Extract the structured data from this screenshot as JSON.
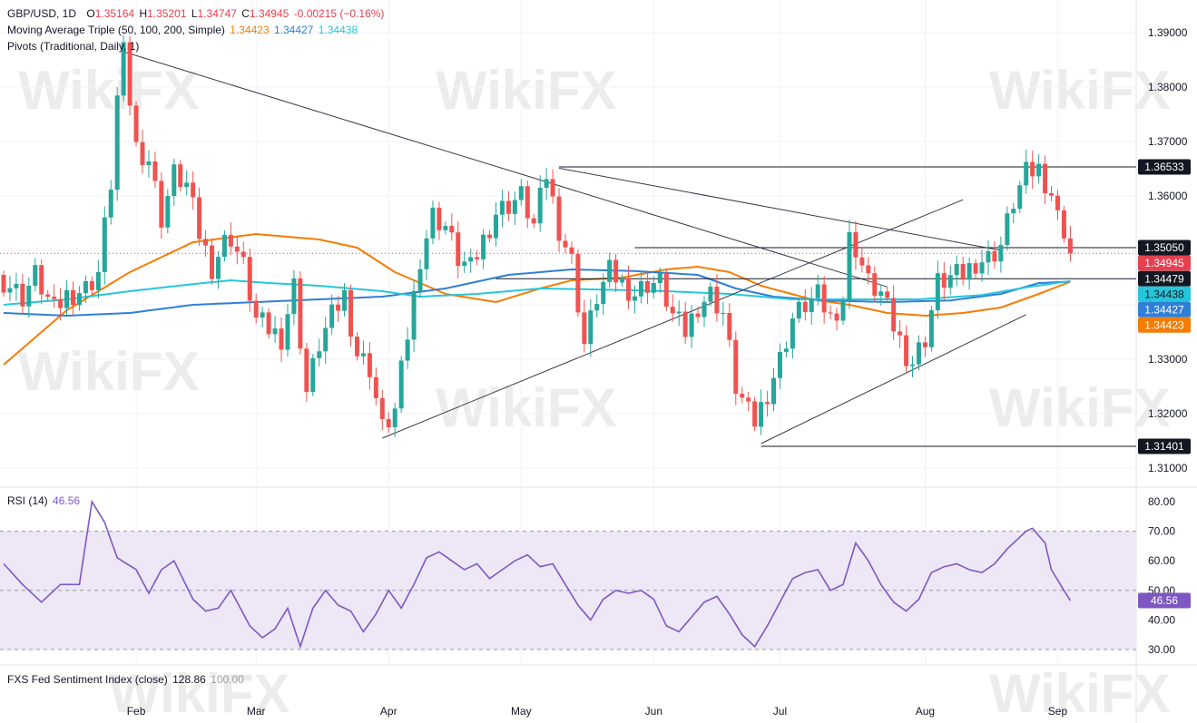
{
  "legend": {
    "symbol": "GBP/USD, 1D",
    "ohlc": {
      "o_label": "O",
      "o": "1.35164",
      "h_label": "H",
      "h": "1.35201",
      "l_label": "L",
      "l": "1.34747",
      "c_label": "C",
      "c": "1.34945",
      "change": "-0.00215 (−0.16%)"
    },
    "ma_title": "Moving Average Triple (50, 100, 200, Simple)",
    "ma_values": [
      "1.34423",
      "1.34427",
      "1.34438"
    ],
    "pivots": "Pivots (Traditional, Daily, 1)",
    "rsi_title": "RSI (14)",
    "rsi_value": "46.56",
    "fxs_title": "FXS Fed Sentiment Index (close)",
    "fxs_value": "128.86",
    "fxs_value2": "100.00"
  },
  "colors": {
    "up": "#26a69a",
    "down": "#ef5350",
    "ma50": "#f57c00",
    "ma100": "#2f7fd6",
    "ma200": "#26c6da",
    "rsi": "#7e57c2",
    "rsi_band": "#ede7f6",
    "price_line": "#e5404f"
  },
  "watermark": "WikiFX",
  "chart_data": [
    {
      "type": "candlestick",
      "symbol": "GBP/USD",
      "interval": "1D",
      "ylim": [
        1.3055,
        1.3955
      ],
      "yticks": [
        "1.39000",
        "1.38000",
        "1.37000",
        "1.36000",
        "1.35000",
        "1.34000",
        "1.33000",
        "1.32000",
        "1.31000"
      ],
      "xticks": [
        {
          "label": "Feb",
          "day": 21
        },
        {
          "label": "Mar",
          "day": 40
        },
        {
          "label": "Apr",
          "day": 61
        },
        {
          "label": "May",
          "day": 82
        },
        {
          "label": "Jun",
          "day": 103
        },
        {
          "label": "Jul",
          "day": 123
        },
        {
          "label": "Aug",
          "day": 146
        },
        {
          "label": "Sep",
          "day": 167
        }
      ],
      "price_tags": [
        {
          "text": "1.36533",
          "value": 1.36533,
          "style": "dark"
        },
        {
          "text": "1.35050",
          "value": 1.3505,
          "style": "dark"
        },
        {
          "text": "1.34945",
          "value": 1.34945,
          "style": "red"
        },
        {
          "text": "1.34479",
          "value": 1.34479,
          "style": "dark"
        },
        {
          "text": "1.34438",
          "value": 1.34438,
          "style": "cyan"
        },
        {
          "text": "1.34427",
          "value": 1.34427,
          "style": "blue"
        },
        {
          "text": "1.34423",
          "value": 1.34423,
          "style": "orange"
        },
        {
          "text": "1.31401",
          "value": 1.31401,
          "style": "dark"
        }
      ],
      "candles_close_anchors": [
        [
          0,
          1.3445
        ],
        [
          3,
          1.3415
        ],
        [
          5,
          1.3455
        ],
        [
          8,
          1.3388
        ],
        [
          10,
          1.3418
        ],
        [
          13,
          1.343
        ],
        [
          15,
          1.346
        ],
        [
          17,
          1.3625
        ],
        [
          18,
          1.378
        ],
        [
          19,
          1.386
        ],
        [
          21,
          1.369
        ],
        [
          23,
          1.3668
        ],
        [
          25,
          1.356
        ],
        [
          27,
          1.364
        ],
        [
          29,
          1.362
        ],
        [
          31,
          1.353
        ],
        [
          33,
          1.347
        ],
        [
          35,
          1.3515
        ],
        [
          36,
          1.3525
        ],
        [
          38,
          1.347
        ],
        [
          40,
          1.3372
        ],
        [
          42,
          1.3355
        ],
        [
          44,
          1.334
        ],
        [
          46,
          1.3435
        ],
        [
          48,
          1.324
        ],
        [
          50,
          1.3328
        ],
        [
          52,
          1.3378
        ],
        [
          54,
          1.3418
        ],
        [
          56,
          1.331
        ],
        [
          58,
          1.3285
        ],
        [
          60,
          1.3172
        ],
        [
          62,
          1.3205
        ],
        [
          64,
          1.3345
        ],
        [
          66,
          1.3488
        ],
        [
          68,
          1.3565
        ],
        [
          70,
          1.3545
        ],
        [
          72,
          1.3485
        ],
        [
          74,
          1.3465
        ],
        [
          76,
          1.352
        ],
        [
          78,
          1.357
        ],
        [
          80,
          1.3585
        ],
        [
          82,
          1.36
        ],
        [
          84,
          1.3545
        ],
        [
          86,
          1.364
        ],
        [
          88,
          1.354
        ],
        [
          90,
          1.348
        ],
        [
          92,
          1.3328
        ],
        [
          94,
          1.3415
        ],
        [
          96,
          1.346
        ],
        [
          98,
          1.344
        ],
        [
          100,
          1.342
        ],
        [
          102,
          1.344
        ],
        [
          104,
          1.344
        ],
        [
          106,
          1.338
        ],
        [
          108,
          1.335
        ],
        [
          110,
          1.34
        ],
        [
          112,
          1.342
        ],
        [
          114,
          1.3385
        ],
        [
          116,
          1.325
        ],
        [
          118,
          1.32
        ],
        [
          119,
          1.3185
        ],
        [
          121,
          1.324
        ],
        [
          123,
          1.33
        ],
        [
          125,
          1.3375
        ],
        [
          127,
          1.34
        ],
        [
          129,
          1.3415
        ],
        [
          131,
          1.3375
        ],
        [
          133,
          1.3412
        ],
        [
          134,
          1.352
        ],
        [
          135,
          1.3505
        ],
        [
          137,
          1.344
        ],
        [
          139,
          1.342
        ],
        [
          141,
          1.336
        ],
        [
          143,
          1.331
        ],
        [
          144,
          1.3295
        ],
        [
          146,
          1.334
        ],
        [
          148,
          1.344
        ],
        [
          150,
          1.345
        ],
        [
          152,
          1.3455
        ],
        [
          154,
          1.348
        ],
        [
          156,
          1.3485
        ],
        [
          158,
          1.351
        ],
        [
          160,
          1.359
        ],
        [
          162,
          1.364
        ],
        [
          164,
          1.365
        ],
        [
          166,
          1.3605
        ],
        [
          167,
          1.356
        ],
        [
          168,
          1.354
        ],
        [
          169,
          1.34945
        ]
      ],
      "moving_averages": [
        {
          "name": "SMA 50",
          "value": 1.34423,
          "points": [
            [
              0,
              1.329
            ],
            [
              10,
              1.339
            ],
            [
              20,
              1.346
            ],
            [
              30,
              1.3515
            ],
            [
              40,
              1.353
            ],
            [
              50,
              1.352
            ],
            [
              56,
              1.3505
            ],
            [
              62,
              1.346
            ],
            [
              70,
              1.342
            ],
            [
              78,
              1.3405
            ],
            [
              85,
              1.343
            ],
            [
              90,
              1.3445
            ],
            [
              98,
              1.345
            ],
            [
              105,
              1.3465
            ],
            [
              110,
              1.347
            ],
            [
              115,
              1.346
            ],
            [
              120,
              1.3435
            ],
            [
              128,
              1.341
            ],
            [
              134,
              1.34
            ],
            [
              140,
              1.3385
            ],
            [
              146,
              1.338
            ],
            [
              152,
              1.3385
            ],
            [
              158,
              1.3395
            ],
            [
              164,
              1.342
            ],
            [
              169,
              1.34423
            ]
          ]
        },
        {
          "name": "SMA 100",
          "value": 1.34427,
          "points": [
            [
              0,
              1.3385
            ],
            [
              10,
              1.338
            ],
            [
              20,
              1.3385
            ],
            [
              30,
              1.34
            ],
            [
              40,
              1.3405
            ],
            [
              50,
              1.341
            ],
            [
              60,
              1.3415
            ],
            [
              70,
              1.343
            ],
            [
              80,
              1.3455
            ],
            [
              90,
              1.3465
            ],
            [
              100,
              1.3462
            ],
            [
              110,
              1.3455
            ],
            [
              116,
              1.343
            ],
            [
              122,
              1.3415
            ],
            [
              130,
              1.3408
            ],
            [
              140,
              1.3405
            ],
            [
              150,
              1.3408
            ],
            [
              158,
              1.342
            ],
            [
              164,
              1.344
            ],
            [
              169,
              1.34427
            ]
          ]
        },
        {
          "name": "SMA 200",
          "value": 1.34438,
          "points": [
            [
              0,
              1.34
            ],
            [
              10,
              1.341
            ],
            [
              20,
              1.3425
            ],
            [
              30,
              1.3438
            ],
            [
              36,
              1.3445
            ],
            [
              42,
              1.344
            ],
            [
              50,
              1.3435
            ],
            [
              60,
              1.3425
            ],
            [
              66,
              1.3415
            ],
            [
              75,
              1.342
            ],
            [
              85,
              1.343
            ],
            [
              95,
              1.3428
            ],
            [
              105,
              1.3425
            ],
            [
              115,
              1.342
            ],
            [
              125,
              1.341
            ],
            [
              135,
              1.341
            ],
            [
              145,
              1.341
            ],
            [
              155,
              1.3418
            ],
            [
              162,
              1.3432
            ],
            [
              169,
              1.34438
            ]
          ]
        }
      ],
      "trendlines": [
        {
          "from": [
            19,
            1.3865
          ],
          "to": [
            140,
            1.3433
          ]
        },
        {
          "from": [
            88,
            1.3651
          ],
          "to": [
            158,
            1.35
          ]
        },
        {
          "from": [
            60,
            1.3155
          ],
          "to": [
            152,
            1.3593
          ]
        },
        {
          "from": [
            120,
            1.3145
          ],
          "to": [
            162,
            1.3382
          ]
        }
      ],
      "horizontal_levels": [
        {
          "from": 88,
          "to": 180,
          "value": 1.36533
        },
        {
          "from": 100,
          "to": 180,
          "value": 1.3505
        },
        {
          "from": 78,
          "to": 180,
          "value": 1.34479
        },
        {
          "from": 120,
          "to": 180,
          "value": 1.31401
        }
      ],
      "last_price_line": 1.34945
    },
    {
      "type": "line",
      "title": "RSI (14)",
      "ylim": [
        27,
        83
      ],
      "yticks": [
        "80.00",
        "70.00",
        "60.00",
        "50.00",
        "40.00",
        "30.00"
      ],
      "band": [
        30,
        70
      ],
      "midline": 50,
      "current_tag": "46.56",
      "anchors": [
        [
          0,
          59
        ],
        [
          3,
          52
        ],
        [
          6,
          46
        ],
        [
          9,
          52
        ],
        [
          12,
          52
        ],
        [
          14,
          80
        ],
        [
          16,
          73
        ],
        [
          18,
          61
        ],
        [
          21,
          57
        ],
        [
          23,
          49
        ],
        [
          25,
          57
        ],
        [
          27,
          60
        ],
        [
          30,
          47
        ],
        [
          32,
          43
        ],
        [
          34,
          44
        ],
        [
          36,
          50
        ],
        [
          39,
          38
        ],
        [
          41,
          34
        ],
        [
          43,
          37
        ],
        [
          45,
          44
        ],
        [
          47,
          31
        ],
        [
          49,
          44
        ],
        [
          51,
          50
        ],
        [
          53,
          45
        ],
        [
          55,
          43
        ],
        [
          57,
          36
        ],
        [
          59,
          42
        ],
        [
          61,
          50
        ],
        [
          63,
          44
        ],
        [
          65,
          52
        ],
        [
          67,
          61
        ],
        [
          69,
          63
        ],
        [
          71,
          60
        ],
        [
          73,
          57
        ],
        [
          75,
          59
        ],
        [
          77,
          54
        ],
        [
          79,
          57
        ],
        [
          81,
          60
        ],
        [
          83,
          62
        ],
        [
          85,
          58
        ],
        [
          87,
          59
        ],
        [
          89,
          52
        ],
        [
          91,
          45
        ],
        [
          93,
          40
        ],
        [
          95,
          47
        ],
        [
          97,
          50
        ],
        [
          99,
          49
        ],
        [
          101,
          50
        ],
        [
          103,
          47
        ],
        [
          105,
          38
        ],
        [
          107,
          36
        ],
        [
          109,
          41
        ],
        [
          111,
          46
        ],
        [
          113,
          48
        ],
        [
          115,
          42
        ],
        [
          117,
          35
        ],
        [
          119,
          31
        ],
        [
          121,
          38
        ],
        [
          123,
          46
        ],
        [
          125,
          54
        ],
        [
          127,
          56
        ],
        [
          129,
          57
        ],
        [
          131,
          50
        ],
        [
          133,
          52
        ],
        [
          135,
          66
        ],
        [
          137,
          60
        ],
        [
          139,
          52
        ],
        [
          141,
          46
        ],
        [
          143,
          43
        ],
        [
          145,
          47
        ],
        [
          147,
          56
        ],
        [
          149,
          58
        ],
        [
          151,
          59
        ],
        [
          153,
          57
        ],
        [
          155,
          56
        ],
        [
          157,
          59
        ],
        [
          159,
          64
        ],
        [
          161,
          68
        ],
        [
          162,
          70
        ],
        [
          163,
          71
        ],
        [
          165,
          66
        ],
        [
          166,
          57
        ],
        [
          168,
          50
        ],
        [
          169,
          46.56
        ]
      ]
    }
  ]
}
